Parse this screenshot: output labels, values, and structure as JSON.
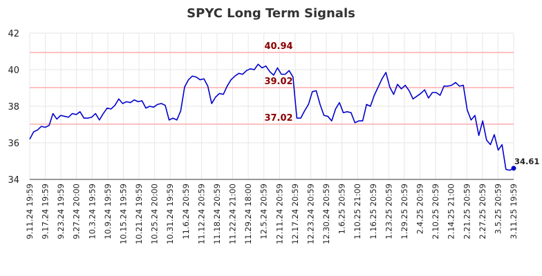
{
  "chart_data": {
    "type": "line",
    "title": "SPYC Long Term Signals",
    "xlabel": "",
    "ylabel": "",
    "ylim": [
      34,
      42
    ],
    "y_ticks": [
      34,
      36,
      38,
      40,
      42
    ],
    "grid": true,
    "legend": "none",
    "x_tick_labels": [
      "9.11.24 19:59",
      "9.17.24 19:59",
      "9.23.24 19:59",
      "9.27.24 20:00",
      "10.3.24 19:59",
      "10.9.24 19:59",
      "10.15.24 19:59",
      "10.21.24 19:59",
      "10.25.24 20:00",
      "10.31.24 19:59",
      "11.6.24 20:59",
      "11.12.24 20:59",
      "11.18.24 20:59",
      "11.22.24 21:00",
      "11.29.24 18:00",
      "12.5.24 20:59",
      "12.11.24 20:59",
      "12.17.24 20:59",
      "12.23.24 20:59",
      "12.30.24 20:59",
      "1.6.25 20:59",
      "1.10.25 21:00",
      "1.16.25 20:59",
      "1.23.25 20:59",
      "1.29.25 20:59",
      "2.4.25 20:59",
      "2.10.25 20:59",
      "2.14.25 21:00",
      "2.21.25 20:59",
      "2.27.25 20:59",
      "3.5.25 20:59",
      "3.11.25 19:59"
    ],
    "reference_lines": [
      {
        "label": "40.94",
        "value": 40.94
      },
      {
        "label": "39.02",
        "value": 39.02
      },
      {
        "label": "37.02",
        "value": 37.02
      }
    ],
    "series": [
      {
        "color": "#0000cc",
        "values": [
          36.2,
          36.6,
          36.7,
          36.9,
          36.85,
          36.95,
          37.6,
          37.3,
          37.5,
          37.45,
          37.4,
          37.6,
          37.55,
          37.7,
          37.35,
          37.35,
          37.4,
          37.6,
          37.25,
          37.6,
          37.9,
          37.85,
          38.05,
          38.4,
          38.15,
          38.25,
          38.2,
          38.35,
          38.25,
          38.3,
          37.9,
          38.0,
          37.95,
          38.1,
          38.15,
          38.05,
          37.25,
          37.35,
          37.25,
          37.75,
          39.05,
          39.45,
          39.65,
          39.6,
          39.45,
          39.5,
          39.1,
          38.15,
          38.5,
          38.7,
          38.65,
          39.1,
          39.45,
          39.65,
          39.8,
          39.75,
          39.95,
          40.05,
          40.0,
          40.3,
          40.1,
          40.2,
          39.9,
          39.7,
          40.1,
          39.75,
          39.75,
          39.95,
          39.6,
          37.35,
          37.35,
          37.75,
          38.1,
          38.8,
          38.85,
          38.1,
          37.5,
          37.45,
          37.2,
          37.85,
          38.2,
          37.65,
          37.7,
          37.65,
          37.1,
          37.2,
          37.2,
          38.1,
          38.0,
          38.6,
          39.05,
          39.5,
          39.85,
          39.05,
          38.65,
          39.2,
          38.95,
          39.15,
          38.85,
          38.4,
          38.55,
          38.7,
          38.9,
          38.45,
          38.75,
          38.75,
          38.6,
          39.1,
          39.1,
          39.15,
          39.3,
          39.1,
          39.15,
          37.8,
          37.25,
          37.5,
          36.4,
          37.2,
          36.15,
          35.9,
          36.45,
          35.6,
          35.9,
          34.55,
          34.5,
          34.61
        ]
      }
    ],
    "last_value_label": "34.61"
  }
}
